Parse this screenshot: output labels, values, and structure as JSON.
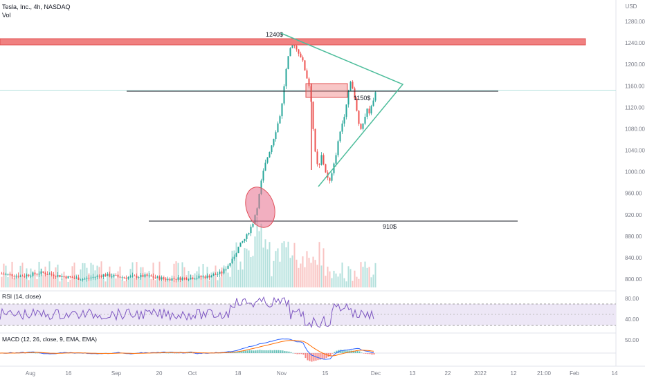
{
  "header": {
    "symbol_label": "Tesla, Inc., 4h, NASDAQ",
    "vol_label": "Vol"
  },
  "currency": "USD",
  "price_axis": {
    "ticks": [
      "1280.00",
      "1240.00",
      "1200.00",
      "1160.00",
      "1120.00",
      "1080.00",
      "1040.00",
      "1000.00",
      "960.00",
      "920.00",
      "880.00",
      "840.00",
      "800.00"
    ],
    "range": [
      780,
      1300
    ]
  },
  "annotations": {
    "top_level_label": "1240$",
    "mid_level_label": "1150$",
    "low_level_label": "910$"
  },
  "rsi": {
    "label": "RSI (14, close)",
    "ticks": [
      "80.00",
      "40.00"
    ],
    "upper_band": 70,
    "lower_band": 30
  },
  "macd": {
    "label": "MACD (12, 26, close, 9, EMA, EMA)",
    "ticks": [
      "50.00"
    ]
  },
  "time_axis": {
    "ticks": [
      "Aug",
      "16",
      "Sep",
      "20",
      "Oct",
      "18",
      "Nov",
      "15",
      "Dec",
      "13",
      "22",
      "2022",
      "12",
      "21:00",
      "Feb",
      "14"
    ]
  },
  "colors": {
    "up": "#26a69a",
    "down": "#ef5350",
    "resistance_zone": "#f08080",
    "triangle": "#4dbd9b",
    "rsi_line": "#7e57c2",
    "rsi_band": "#ede7f6",
    "macd_line": "#2962ff",
    "signal_line": "#ff6d00"
  },
  "chart_data": {
    "type": "candlestick",
    "title": "Tesla, Inc., 4h, NASDAQ",
    "y_unit": "USD",
    "x": [
      "Aug",
      "16",
      "Sep",
      "20",
      "Oct",
      "18",
      "Nov",
      "15",
      "Dec"
    ],
    "approx_close_path": [
      {
        "date": "Oct 18",
        "close": 860
      },
      {
        "date": "Oct 25",
        "close": 1020
      },
      {
        "date": "Oct 29",
        "close": 1110
      },
      {
        "date": "Nov 4",
        "close": 1230
      },
      {
        "date": "Nov 8",
        "close": 1180
      },
      {
        "date": "Nov 12",
        "close": 1010
      },
      {
        "date": "Nov 16",
        "close": 990
      },
      {
        "date": "Nov 22",
        "close": 1120
      },
      {
        "date": "Nov 26",
        "close": 1090
      },
      {
        "date": "Dec 1",
        "close": 1150
      }
    ],
    "levels": [
      1240,
      1150,
      910
    ]
  }
}
